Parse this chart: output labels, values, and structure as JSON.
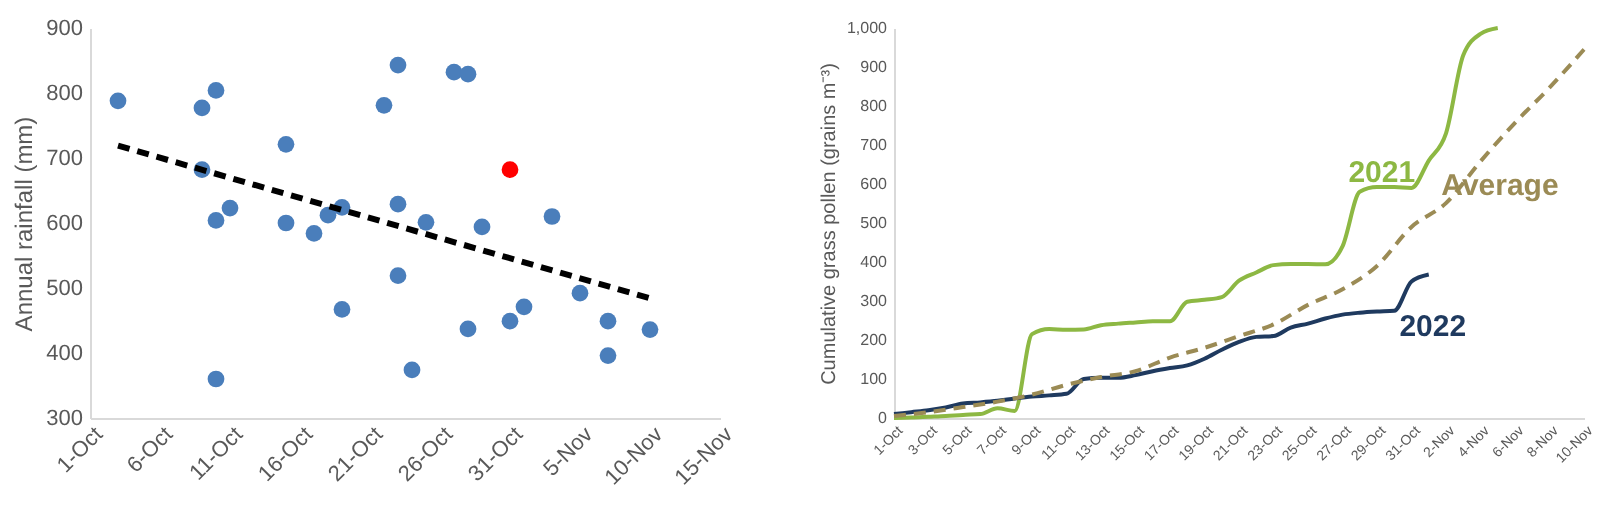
{
  "chart_data": [
    {
      "type": "scatter",
      "ylabel": "Annual rainfall (mm)",
      "xlim": [
        "--10-01",
        "--11-15"
      ],
      "xticks": [
        {
          "value": "--10-01",
          "label": "1-Oct"
        },
        {
          "value": "--10-06",
          "label": "6-Oct"
        },
        {
          "value": "--10-11",
          "label": "11-Oct"
        },
        {
          "value": "--10-16",
          "label": "16-Oct"
        },
        {
          "value": "--10-21",
          "label": "21-Oct"
        },
        {
          "value": "--10-26",
          "label": "26-Oct"
        },
        {
          "value": "--10-31",
          "label": "31-Oct"
        },
        {
          "value": "--11-05",
          "label": "5-Nov"
        },
        {
          "value": "--11-10",
          "label": "10-Nov"
        },
        {
          "value": "--11-15",
          "label": "15-Nov"
        }
      ],
      "ylim": [
        300,
        900
      ],
      "yticks": [
        300,
        400,
        500,
        600,
        700,
        800,
        900
      ],
      "series": [
        {
          "color": "#4a7ebb",
          "marker": "circle",
          "x": [
            "--10-03",
            "--10-09",
            "--10-10",
            "--10-09",
            "--10-10",
            "--10-10",
            "--10-11",
            "--10-15",
            "--10-15",
            "--10-17",
            "--10-18",
            "--10-19",
            "--10-19",
            "--10-22",
            "--10-23",
            "--10-23",
            "--10-23",
            "--10-24",
            "--10-25",
            "--10-27",
            "--10-28",
            "--10-28",
            "--10-29",
            "--10-31",
            "--11-01",
            "--11-03",
            "--11-05",
            "--11-07",
            "--11-07",
            "--11-10"
          ],
          "values": [
            788,
            777,
            804,
            682,
            604,
            360,
            623,
            721,
            600,
            584,
            612,
            624,
            467,
            781,
            843,
            629,
            519,
            374,
            601,
            832,
            829,
            437,
            594,
            449,
            471,
            610,
            492,
            449,
            396,
            436
          ]
        },
        {
          "color": "#ff0000",
          "marker": "circle",
          "x": [
            "--10-31"
          ],
          "values": [
            682
          ]
        },
        {
          "type": "line",
          "color": "#000000",
          "line_style": "dashed",
          "x": [
            "--10-03",
            "--11-10"
          ],
          "values": [
            719,
            484
          ]
        }
      ]
    },
    {
      "type": "line",
      "ylabel": "Cumulative grass pollen (grains m⁻³)",
      "xlim": [
        "--10-01",
        "--11-10"
      ],
      "xticks": [
        {
          "value": "--10-01",
          "label": "1-Oct"
        },
        {
          "value": "--10-03",
          "label": "3-Oct"
        },
        {
          "value": "--10-05",
          "label": "5-Oct"
        },
        {
          "value": "--10-07",
          "label": "7-Oct"
        },
        {
          "value": "--10-09",
          "label": "9-Oct"
        },
        {
          "value": "--10-11",
          "label": "11-Oct"
        },
        {
          "value": "--10-13",
          "label": "13-Oct"
        },
        {
          "value": "--10-15",
          "label": "15-Oct"
        },
        {
          "value": "--10-17",
          "label": "17-Oct"
        },
        {
          "value": "--10-19",
          "label": "19-Oct"
        },
        {
          "value": "--10-21",
          "label": "21-Oct"
        },
        {
          "value": "--10-23",
          "label": "23-Oct"
        },
        {
          "value": "--10-25",
          "label": "25-Oct"
        },
        {
          "value": "--10-27",
          "label": "27-Oct"
        },
        {
          "value": "--10-29",
          "label": "29-Oct"
        },
        {
          "value": "--10-31",
          "label": "31-Oct"
        },
        {
          "value": "--11-02",
          "label": "2-Nov"
        },
        {
          "value": "--11-04",
          "label": "4-Nov"
        },
        {
          "value": "--11-06",
          "label": "6-Nov"
        },
        {
          "value": "--11-08",
          "label": "8-Nov"
        },
        {
          "value": "--11-10",
          "label": "10-Nov"
        }
      ],
      "ylim": [
        0,
        1000
      ],
      "yticks": [
        0,
        100,
        200,
        300,
        400,
        500,
        600,
        700,
        800,
        900,
        {
          "value": 1000,
          "label": "1,000"
        }
      ],
      "series": [
        {
          "name": "2021",
          "color": "#8db843",
          "line_style": "solid",
          "x": [
            "--10-01",
            "--10-02",
            "--10-03",
            "--10-04",
            "--10-05",
            "--10-06",
            "--10-07",
            "--10-08",
            "--10-09",
            "--10-10",
            "--10-11",
            "--10-12",
            "--10-13",
            "--10-14",
            "--10-15",
            "--10-16",
            "--10-17",
            "--10-18",
            "--10-19",
            "--10-20",
            "--10-21",
            "--10-22",
            "--10-23",
            "--10-24",
            "--10-25",
            "--10-26",
            "--10-27",
            "--10-28",
            "--10-29",
            "--10-30",
            "--10-31",
            "--11-01",
            "--11-02",
            "--11-03",
            "--11-04",
            "--11-05"
          ],
          "values": [
            0,
            1,
            3,
            5,
            8,
            10,
            25,
            18,
            215,
            228,
            226,
            227,
            238,
            242,
            245,
            248,
            248,
            298,
            303,
            310,
            352,
            373,
            392,
            395,
            395,
            394,
            440,
            580,
            592,
            592,
            590,
            660,
            730,
            930,
            985,
            1000
          ]
        },
        {
          "name": "2022",
          "color": "#1f3a5f",
          "line_style": "solid",
          "x": [
            "--10-01",
            "--10-02",
            "--10-03",
            "--10-04",
            "--10-05",
            "--10-06",
            "--10-07",
            "--10-08",
            "--10-09",
            "--10-10",
            "--10-11",
            "--10-12",
            "--10-13",
            "--10-14",
            "--10-15",
            "--10-16",
            "--10-17",
            "--10-18",
            "--10-19",
            "--10-20",
            "--10-21",
            "--10-22",
            "--10-23",
            "--10-24",
            "--10-25",
            "--10-26",
            "--10-27",
            "--10-28",
            "--10-29",
            "--10-30",
            "--10-31",
            "--11-01"
          ],
          "values": [
            10,
            15,
            20,
            27,
            37,
            40,
            44,
            50,
            55,
            58,
            62,
            100,
            103,
            103,
            110,
            120,
            128,
            135,
            152,
            175,
            195,
            208,
            210,
            232,
            242,
            255,
            265,
            270,
            273,
            275,
            350,
            368
          ]
        },
        {
          "name": "Average",
          "color": "#9b8b55",
          "line_style": "dashed",
          "x": [
            "--10-01",
            "--10-03",
            "--10-05",
            "--10-07",
            "--10-09",
            "--10-11",
            "--10-13",
            "--10-15",
            "--10-17",
            "--10-19",
            "--10-21",
            "--10-23",
            "--10-25",
            "--10-27",
            "--10-29",
            "--10-31",
            "--11-02",
            "--11-04",
            "--11-06",
            "--11-08",
            "--11-10"
          ],
          "values": [
            5,
            15,
            28,
            42,
            60,
            85,
            105,
            120,
            155,
            180,
            210,
            240,
            290,
            330,
            390,
            490,
            551,
            658,
            757,
            847,
            945
          ]
        }
      ]
    }
  ]
}
